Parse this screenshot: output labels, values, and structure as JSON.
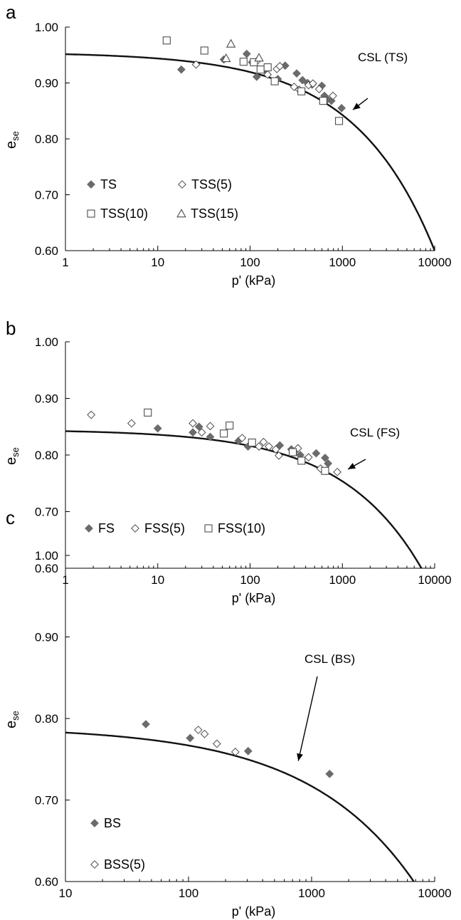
{
  "colors": {
    "filled": "#6b6b6b",
    "open": "#4d4d4d",
    "curve": "#111111",
    "axis": "#000000"
  },
  "chart_data": [
    {
      "panel": "a",
      "type": "scatter",
      "xscale": "log",
      "xlim": [
        1,
        10000
      ],
      "ylim": [
        0.6,
        1.0
      ],
      "xticks": [
        "1",
        "10",
        "100",
        "1000",
        "10000"
      ],
      "yticks": [
        "0.60",
        "0.70",
        "0.80",
        "0.90",
        "1.00"
      ],
      "xlabel": "p' (kPa)",
      "ylabel_main": "e",
      "ylabel_sub": "se",
      "legend_rows": [
        [
          "TS",
          "TSS(5)"
        ],
        [
          "TSS(10)",
          "TSS(15)"
        ]
      ],
      "series": [
        {
          "name": "TS",
          "marker": "diamond-filled",
          "points": [
            [
              18,
              0.924
            ],
            [
              52,
              0.942
            ],
            [
              92,
              0.952
            ],
            [
              105,
              0.937
            ],
            [
              118,
              0.911
            ],
            [
              145,
              0.924
            ],
            [
              200,
              0.907
            ],
            [
              240,
              0.931
            ],
            [
              320,
              0.917
            ],
            [
              370,
              0.905
            ],
            [
              420,
              0.9
            ],
            [
              470,
              0.897
            ],
            [
              600,
              0.895
            ],
            [
              640,
              0.877
            ],
            [
              690,
              0.871
            ],
            [
              760,
              0.868
            ],
            [
              980,
              0.855
            ]
          ]
        },
        {
          "name": "TSS(5)",
          "marker": "diamond-open",
          "points": [
            [
              26,
              0.933
            ],
            [
              120,
              0.94
            ],
            [
              155,
              0.915
            ],
            [
              195,
              0.925
            ],
            [
              210,
              0.93
            ],
            [
              300,
              0.893
            ],
            [
              340,
              0.888
            ],
            [
              430,
              0.896
            ],
            [
              480,
              0.899
            ],
            [
              560,
              0.889
            ],
            [
              790,
              0.877
            ]
          ]
        },
        {
          "name": "TSS(10)",
          "marker": "square-open",
          "points": [
            [
              12.5,
              0.976
            ],
            [
              32,
              0.958
            ],
            [
              85,
              0.938
            ],
            [
              110,
              0.937
            ],
            [
              130,
              0.924
            ],
            [
              155,
              0.928
            ],
            [
              185,
              0.903
            ],
            [
              360,
              0.885
            ],
            [
              620,
              0.868
            ],
            [
              920,
              0.832
            ]
          ]
        },
        {
          "name": "TSS(15)",
          "marker": "triangle-open",
          "points": [
            [
              55,
              0.944
            ],
            [
              62,
              0.97
            ],
            [
              125,
              0.945
            ]
          ]
        },
        {
          "name": "CSL (TS)",
          "kind": "line",
          "e0": 0.955,
          "k": 0.355
        }
      ],
      "annotation": {
        "text": "CSL (TS)",
        "arrow_to": [
          1300,
          0.852
        ]
      }
    },
    {
      "panel": "b",
      "type": "scatter",
      "xscale": "log",
      "xlim": [
        1,
        10000
      ],
      "ylim": [
        0.6,
        1.0
      ],
      "xticks": [
        "1",
        "10",
        "100",
        "1000",
        "10000"
      ],
      "yticks": [
        "0.60",
        "0.70",
        "0.80",
        "0.90",
        "1.00"
      ],
      "xlabel": "p' (kPa)",
      "ylabel_main": "e",
      "ylabel_sub": "se",
      "legend_rows": [
        [
          "FS",
          "FSS(5)",
          "FSS(10)"
        ]
      ],
      "series": [
        {
          "name": "FS",
          "marker": "diamond-filled",
          "points": [
            [
              10,
              0.847
            ],
            [
              24,
              0.84
            ],
            [
              28,
              0.85
            ],
            [
              37,
              0.832
            ],
            [
              75,
              0.825
            ],
            [
              95,
              0.815
            ],
            [
              210,
              0.817
            ],
            [
              280,
              0.81
            ],
            [
              350,
              0.8
            ],
            [
              520,
              0.803
            ],
            [
              650,
              0.795
            ],
            [
              700,
              0.785
            ]
          ]
        },
        {
          "name": "FSS(5)",
          "marker": "diamond-open",
          "points": [
            [
              1.9,
              0.871
            ],
            [
              5.2,
              0.856
            ],
            [
              24,
              0.856
            ],
            [
              30,
              0.84
            ],
            [
              37,
              0.851
            ],
            [
              82,
              0.83
            ],
            [
              125,
              0.815
            ],
            [
              140,
              0.823
            ],
            [
              160,
              0.815
            ],
            [
              190,
              0.81
            ],
            [
              205,
              0.799
            ],
            [
              300,
              0.805
            ],
            [
              330,
              0.812
            ],
            [
              430,
              0.796
            ],
            [
              580,
              0.776
            ],
            [
              880,
              0.77
            ]
          ]
        },
        {
          "name": "FSS(10)",
          "marker": "square-open",
          "points": [
            [
              7.8,
              0.875
            ],
            [
              52,
              0.838
            ],
            [
              60,
              0.852
            ],
            [
              105,
              0.822
            ],
            [
              290,
              0.805
            ],
            [
              360,
              0.79
            ],
            [
              650,
              0.772
            ]
          ]
        },
        {
          "name": "CSL (FS)",
          "kind": "line",
          "e0": 0.845,
          "k": 0.289
        }
      ],
      "annotation": {
        "text": "CSL (FS)",
        "arrow_to": [
          1150,
          0.775
        ]
      }
    },
    {
      "panel": "c",
      "type": "scatter",
      "xscale": "log",
      "xlim": [
        10,
        10000
      ],
      "ylim": [
        0.6,
        1.0
      ],
      "xticks": [
        "10",
        "100",
        "1000",
        "10000"
      ],
      "yticks": [
        "0.60",
        "0.70",
        "0.80",
        "0.90",
        "1.00"
      ],
      "xlabel": "p' (kPa)",
      "ylabel_main": "e",
      "ylabel_sub": "se",
      "legend_rows": [
        [
          "BS"
        ],
        [
          "BSS(5)"
        ]
      ],
      "series": [
        {
          "name": "BS",
          "marker": "diamond-filled",
          "points": [
            [
              45,
              0.793
            ],
            [
              103,
              0.776
            ],
            [
              305,
              0.76
            ],
            [
              1400,
              0.732
            ]
          ]
        },
        {
          "name": "BSS(5)",
          "marker": "diamond-open",
          "points": [
            [
              120,
              0.786
            ],
            [
              135,
              0.781
            ],
            [
              170,
              0.769
            ],
            [
              240,
              0.759
            ]
          ]
        },
        {
          "name": "CSL (BS)",
          "kind": "line",
          "e0": 0.79,
          "k": 0.231
        }
      ],
      "annotation": {
        "text": "CSL (BS)",
        "arrow_to": [
          780,
          0.748
        ]
      }
    }
  ]
}
